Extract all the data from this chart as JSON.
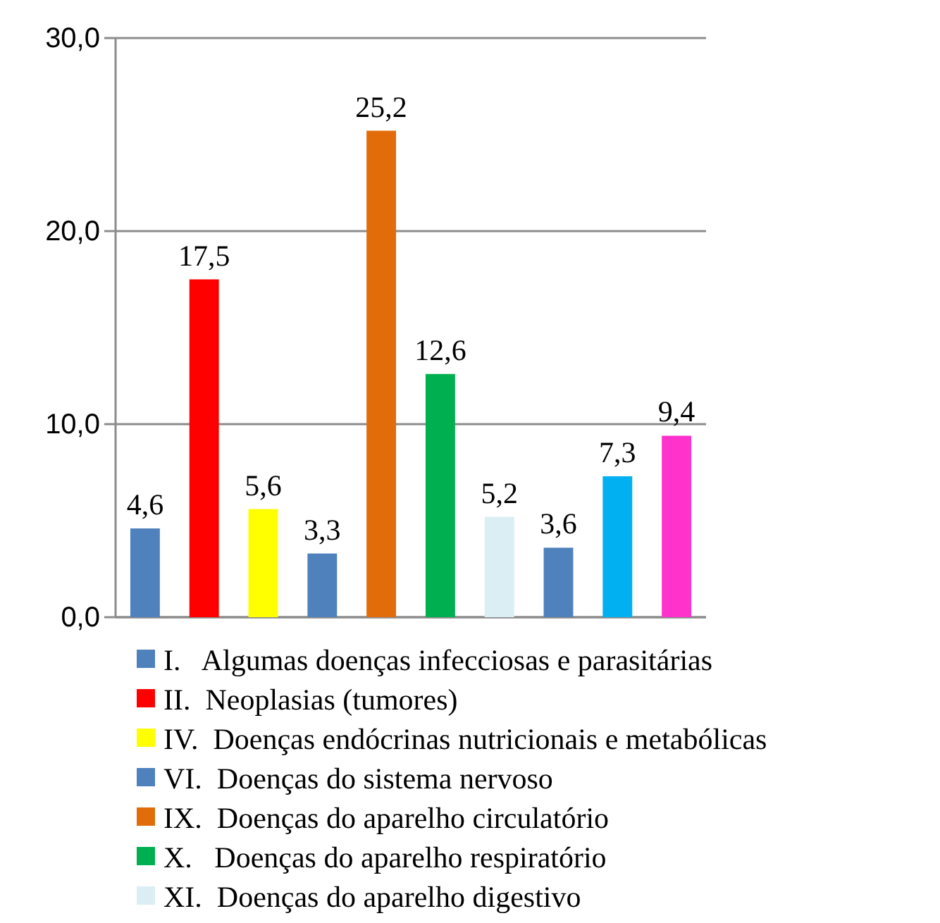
{
  "chart_data": {
    "type": "bar",
    "categories": [
      null,
      null,
      null,
      null,
      null,
      null,
      null,
      null,
      null,
      null
    ],
    "series": [
      {
        "name": "I.   Algumas doenças infecciosas e parasitárias",
        "color": "#4f81bd",
        "values": [
          4.6,
          null,
          null,
          null,
          null,
          null,
          null,
          null,
          null,
          null
        ],
        "value_labels": [
          "4,6",
          null,
          null,
          null,
          null,
          null,
          null,
          null,
          null,
          null
        ]
      },
      {
        "name": "II.  Neoplasias (tumores)",
        "color": "#ff0000",
        "values": [
          null,
          17.5,
          null,
          null,
          null,
          null,
          null,
          null,
          null,
          null
        ],
        "value_labels": [
          null,
          "17,5",
          null,
          null,
          null,
          null,
          null,
          null,
          null,
          null
        ]
      },
      {
        "name": "IV.  Doenças endócrinas nutricionais e metabólicas",
        "color": "#ffff00",
        "values": [
          null,
          null,
          5.6,
          null,
          null,
          null,
          null,
          null,
          null,
          null
        ],
        "value_labels": [
          null,
          null,
          "5,6",
          null,
          null,
          null,
          null,
          null,
          null,
          null
        ]
      },
      {
        "name": "VI.  Doenças do sistema nervoso",
        "color": "#4f81bd",
        "values": [
          null,
          null,
          null,
          3.3,
          null,
          null,
          null,
          null,
          null,
          null
        ],
        "value_labels": [
          null,
          null,
          null,
          "3,3",
          null,
          null,
          null,
          null,
          null,
          null
        ]
      },
      {
        "name": "IX.  Doenças do aparelho circulatório",
        "color": "#e36c0a",
        "values": [
          null,
          null,
          null,
          null,
          25.2,
          null,
          null,
          null,
          null,
          null
        ],
        "value_labels": [
          null,
          null,
          null,
          null,
          "25,2",
          null,
          null,
          null,
          null,
          null
        ]
      },
      {
        "name": "X.   Doenças do aparelho respiratório",
        "color": "#00b050",
        "values": [
          null,
          null,
          null,
          null,
          null,
          12.6,
          null,
          null,
          null,
          null
        ],
        "value_labels": [
          null,
          null,
          null,
          null,
          null,
          "12,6",
          null,
          null,
          null,
          null
        ]
      },
      {
        "name": "XI.  Doenças do aparelho digestivo",
        "color": "#daeef3",
        "values": [
          null,
          null,
          null,
          null,
          null,
          null,
          5.2,
          null,
          null,
          null
        ],
        "value_labels": [
          null,
          null,
          null,
          null,
          null,
          null,
          "5,2",
          null,
          null,
          null
        ]
      },
      {
        "color": "#4f81bd",
        "values": [
          null,
          null,
          null,
          null,
          null,
          null,
          null,
          3.6,
          null,
          null
        ],
        "value_labels": [
          null,
          null,
          null,
          null,
          null,
          null,
          null,
          "3,6",
          null,
          null
        ]
      },
      {
        "color": "#00b0f0",
        "values": [
          null,
          null,
          null,
          null,
          null,
          null,
          null,
          null,
          7.3,
          null
        ],
        "value_labels": [
          null,
          null,
          null,
          null,
          null,
          null,
          null,
          null,
          "7,3",
          null
        ]
      },
      {
        "color": "#ff33cc",
        "values": [
          null,
          null,
          null,
          null,
          null,
          null,
          null,
          null,
          null,
          9.4
        ],
        "value_labels": [
          null,
          null,
          null,
          null,
          null,
          null,
          null,
          null,
          null,
          "9,4"
        ]
      }
    ],
    "ylim": [
      0,
      30
    ],
    "yticks": [
      {
        "value": 0,
        "label": "0,0"
      },
      {
        "value": 10,
        "label": "10,0"
      },
      {
        "value": 20,
        "label": "20,0"
      },
      {
        "value": 30,
        "label": "30,0"
      }
    ],
    "grid": "y",
    "legend": "bottom"
  }
}
